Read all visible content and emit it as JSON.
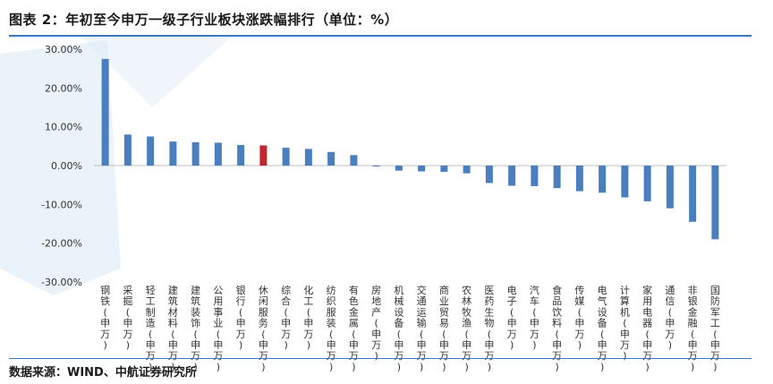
{
  "header": {
    "title": "图表 2：年初至今申万一级子行业板块涨跌幅排行（单位：%）"
  },
  "footer": {
    "source": "数据来源：WIND、中航证券研究所"
  },
  "colors": {
    "bar": "#4a7ebf",
    "highlight": "#c0282d",
    "watermark": "#dbe9f6",
    "rule": "#3b78c2"
  },
  "chart_data": {
    "type": "bar",
    "title": "",
    "xlabel": "",
    "ylabel": "",
    "ylim": [
      -30,
      30
    ],
    "yticks": [
      30,
      20,
      10,
      0,
      -10,
      -20,
      -30
    ],
    "ytick_labels": [
      "30.00%",
      "20.00%",
      "10.00%",
      "0.00%",
      "-10.00%",
      "-20.00%",
      "-30.00%"
    ],
    "grid": false,
    "highlight_category": "休闲服务(申万)",
    "categories": [
      "钢铁(申万)",
      "采掘(申万)",
      "轻工制造(申万)",
      "建筑材料(申万)",
      "建筑装饰(申万)",
      "公用事业(申万)",
      "银行(申万)",
      "休闲服务(申万)",
      "综合(申万)",
      "化工(申万)",
      "纺织服装(申万)",
      "有色金属(申万)",
      "房地产(申万)",
      "机械设备(申万)",
      "交通运输(申万)",
      "商业贸易(申万)",
      "农林牧渔(申万)",
      "医药生物(申万)",
      "电子(申万)",
      "汽车(申万)",
      "食品饮料(申万)",
      "传媒(申万)",
      "电气设备(申万)",
      "计算机(申万)",
      "家用电器(申万)",
      "通信(申万)",
      "非银金融(申万)",
      "国防军工(申万)"
    ],
    "values": [
      27.5,
      8.0,
      7.5,
      6.2,
      6.0,
      5.9,
      5.3,
      5.2,
      4.6,
      4.3,
      3.5,
      2.7,
      -0.2,
      -1.3,
      -1.5,
      -1.6,
      -2.0,
      -4.5,
      -5.2,
      -5.3,
      -5.8,
      -6.6,
      -7.0,
      -8.2,
      -9.2,
      -11.0,
      -14.5,
      -19.0
    ]
  }
}
